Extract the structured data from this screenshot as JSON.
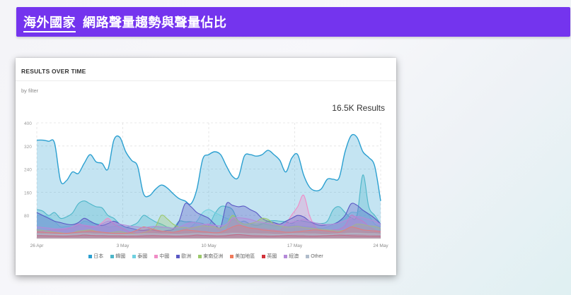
{
  "header": {
    "highlight": "海外國家",
    "title": "網路聲量趨勢與聲量佔比"
  },
  "card": {
    "title": "RESULTS OVER TIME",
    "subtitle": "by filter",
    "total_results": "16.5K Results"
  },
  "chart_data": {
    "type": "area",
    "title": "RESULTS OVER TIME",
    "ylim": [
      0,
      400
    ],
    "y_ticks": [
      "80",
      "160",
      "240",
      "320",
      "400"
    ],
    "x_ticks": [
      "26 Apr",
      "3 May",
      "10 May",
      "17 May",
      "24 May"
    ],
    "grid": true,
    "legend_position": "bottom",
    "series": [
      {
        "name": "日本",
        "color": "#2a9fd0",
        "values": [
          340,
          340,
          336,
          330,
          200,
          200,
          230,
          225,
          260,
          290,
          265,
          260,
          240,
          340,
          350,
          300,
          270,
          250,
          155,
          148,
          170,
          185,
          175,
          155,
          138,
          130,
          120,
          170,
          275,
          290,
          300,
          290,
          250,
          215,
          212,
          285,
          290,
          285,
          290,
          305,
          290,
          270,
          230,
          278,
          290,
          220,
          178,
          165,
          172,
          205,
          205,
          210,
          300,
          355,
          350,
          300,
          280,
          250,
          130
        ]
      },
      {
        "name": "韓國",
        "color": "#4db6c9",
        "values": [
          100,
          95,
          80,
          90,
          70,
          75,
          88,
          120,
          130,
          120,
          110,
          106,
          80,
          70,
          50,
          40,
          45,
          55,
          80,
          70,
          58,
          50,
          40,
          35,
          60,
          58,
          58,
          55,
          52,
          45,
          85,
          110,
          110,
          100,
          60,
          60,
          50,
          45,
          50,
          60,
          62,
          60,
          58,
          52,
          62,
          60,
          56,
          54,
          52,
          60,
          100,
          110,
          90,
          72,
          80,
          220,
          110,
          80,
          50
        ]
      },
      {
        "name": "泰國",
        "color": "#6fd1e0",
        "values": [
          80,
          80,
          75,
          60,
          40,
          42,
          40,
          45,
          60,
          55,
          52,
          50,
          40,
          42,
          45,
          38,
          35,
          30,
          30,
          35,
          40,
          38,
          40,
          35,
          32,
          34,
          40,
          60,
          90,
          100,
          90,
          80,
          70,
          64,
          62,
          50,
          52,
          50,
          52,
          48,
          44,
          42,
          40,
          45,
          44,
          42,
          40,
          38,
          35,
          40,
          50,
          60,
          70,
          90,
          90,
          98,
          80,
          50,
          40
        ]
      },
      {
        "name": "中國",
        "color": "#f08cc6",
        "values": [
          20,
          25,
          28,
          30,
          30,
          32,
          40,
          50,
          45,
          40,
          42,
          55,
          70,
          50,
          40,
          30,
          20,
          18,
          22,
          24,
          26,
          20,
          18,
          22,
          24,
          30,
          38,
          40,
          45,
          50,
          40,
          30,
          32,
          70,
          52,
          40,
          38,
          35,
          34,
          32,
          30,
          28,
          50,
          82,
          110,
          150,
          80,
          40,
          30,
          28,
          30,
          32,
          45,
          80,
          70,
          60,
          42,
          30,
          25
        ]
      },
      {
        "name": "歐洲",
        "color": "#5a58c4",
        "values": [
          90,
          80,
          70,
          60,
          55,
          50,
          48,
          55,
          70,
          60,
          50,
          45,
          52,
          60,
          50,
          40,
          35,
          30,
          28,
          30,
          28,
          25,
          28,
          32,
          60,
          120,
          110,
          90,
          80,
          70,
          50,
          40,
          120,
          115,
          110,
          112,
          100,
          90,
          70,
          60,
          55,
          50,
          60,
          70,
          80,
          75,
          60,
          50,
          45,
          48,
          50,
          60,
          80,
          120,
          115,
          98,
          85,
          70,
          50
        ]
      },
      {
        "name": "東南亞洲",
        "color": "#9bc86a",
        "values": [
          30,
          28,
          25,
          22,
          20,
          18,
          20,
          26,
          28,
          30,
          25,
          22,
          20,
          22,
          24,
          20,
          18,
          16,
          20,
          28,
          40,
          80,
          68,
          50,
          40,
          38,
          36,
          40,
          44,
          42,
          40,
          36,
          48,
          80,
          60,
          50,
          52,
          58,
          70,
          66,
          50,
          44,
          40,
          40,
          42,
          38,
          36,
          34,
          32,
          30,
          28,
          26,
          30,
          40,
          50,
          48,
          44,
          42,
          35
        ]
      },
      {
        "name": "美加地區",
        "color": "#f07a5b",
        "values": [
          24,
          22,
          20,
          20,
          18,
          18,
          20,
          22,
          24,
          26,
          24,
          22,
          20,
          18,
          18,
          18,
          22,
          30,
          40,
          36,
          30,
          26,
          24,
          22,
          26,
          30,
          28,
          26,
          24,
          22,
          20,
          22,
          30,
          40,
          46,
          42,
          36,
          34,
          30,
          28,
          26,
          24,
          22,
          22,
          24,
          26,
          28,
          30,
          28,
          26,
          24,
          22,
          30,
          40,
          36,
          30,
          28,
          26,
          24
        ]
      },
      {
        "name": "英國",
        "color": "#d2323a",
        "values": [
          10,
          10,
          9,
          9,
          8,
          8,
          9,
          10,
          12,
          11,
          10,
          10,
          9,
          9,
          9,
          8,
          8,
          8,
          9,
          10,
          10,
          9,
          9,
          8,
          8,
          9,
          10,
          12,
          11,
          10,
          9,
          9,
          10,
          12,
          14,
          12,
          10,
          9,
          9,
          8,
          8,
          9,
          10,
          10,
          9,
          9,
          8,
          8,
          9,
          10,
          11,
          12,
          11,
          10,
          9,
          9,
          8,
          8,
          8
        ]
      },
      {
        "name": "紐澳",
        "color": "#b58ad9",
        "values": [
          40,
          38,
          36,
          34,
          34,
          36,
          40,
          48,
          46,
          44,
          42,
          50,
          60,
          56,
          50,
          46,
          42,
          40,
          38,
          40,
          42,
          40,
          38,
          36,
          40,
          48,
          56,
          54,
          50,
          48,
          46,
          44,
          50,
          70,
          72,
          70,
          66,
          60,
          56,
          52,
          50,
          48,
          50,
          56,
          60,
          66,
          60,
          54,
          50,
          48,
          50,
          54,
          62,
          70,
          76,
          72,
          66,
          60,
          50
        ]
      },
      {
        "name": "Other",
        "color": "#b0bccb",
        "values": [
          16,
          15,
          15,
          14,
          14,
          14,
          15,
          16,
          17,
          16,
          15,
          15,
          14,
          14,
          14,
          14,
          14,
          15,
          16,
          16,
          16,
          15,
          15,
          14,
          14,
          15,
          16,
          17,
          16,
          16,
          15,
          15,
          16,
          18,
          18,
          17,
          16,
          16,
          15,
          15,
          14,
          14,
          15,
          16,
          16,
          16,
          15,
          15,
          14,
          14,
          15,
          16,
          17,
          18,
          18,
          17,
          16,
          16,
          15
        ]
      }
    ]
  }
}
